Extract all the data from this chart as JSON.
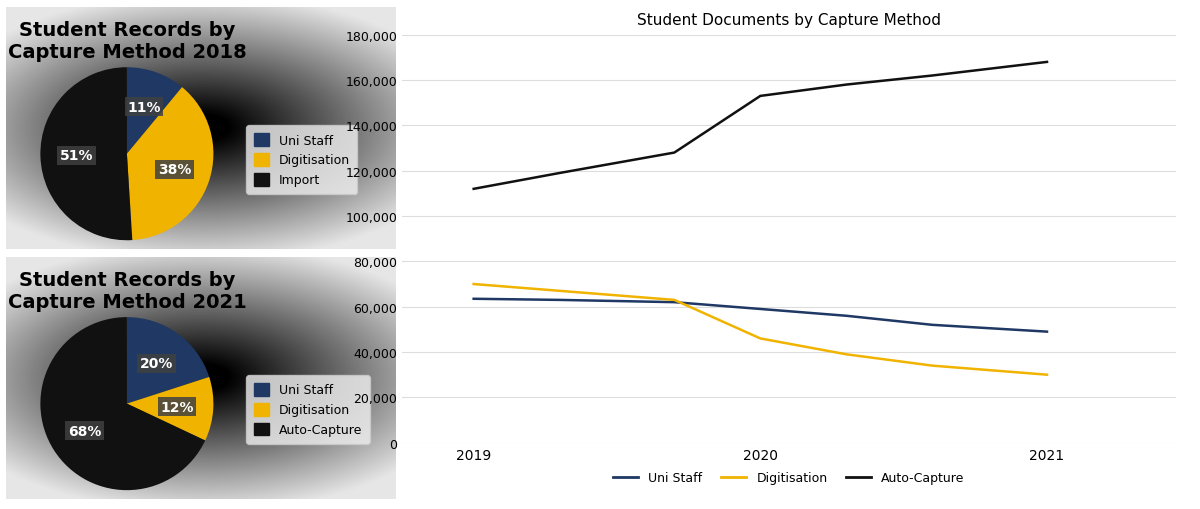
{
  "pie2018": {
    "values": [
      11,
      38,
      51
    ],
    "colors": [
      "#1F3864",
      "#F0B400",
      "#111111"
    ],
    "title": "Student Records by\nCapture Method 2018",
    "pct_labels": [
      "11%",
      "38%",
      "51%"
    ],
    "startangle": 90,
    "legend_labels": [
      "Uni Staff",
      "Digitisation",
      "Import"
    ]
  },
  "pie2021": {
    "values": [
      20,
      12,
      68
    ],
    "colors": [
      "#1F3864",
      "#F0B400",
      "#111111"
    ],
    "title": "Student Records by\nCapture Method 2021",
    "pct_labels": [
      "20%",
      "12%",
      "68%"
    ],
    "startangle": 90,
    "legend_labels": [
      "Uni Staff",
      "Digitisation",
      "Auto-Capture"
    ]
  },
  "line_chart": {
    "title": "Student Documents by Capture Method",
    "years": [
      2019,
      2019.3,
      2019.7,
      2020,
      2020.3,
      2020.6,
      2021
    ],
    "uni_staff": [
      63500,
      63000,
      62000,
      59000,
      56000,
      52000,
      49000
    ],
    "digitisation": [
      70000,
      67000,
      63000,
      46000,
      39000,
      34000,
      30000
    ],
    "auto_capture": [
      112000,
      119000,
      128000,
      153000,
      158000,
      162000,
      168000
    ],
    "ylim": [
      0,
      180000
    ],
    "yticks": [
      0,
      20000,
      40000,
      60000,
      80000,
      100000,
      120000,
      140000,
      160000,
      180000
    ],
    "xticks": [
      2019,
      2020,
      2021
    ],
    "colors": {
      "uni_staff": "#1F3864",
      "digitisation": "#F0B400",
      "auto_capture": "#111111"
    },
    "legend_labels": [
      "Uni Staff",
      "Digitisation",
      "Auto-Capture"
    ]
  },
  "bg_grad_light": "#E8E8E8",
  "bg_grad_dark": "#A0A0A0",
  "pie_label_box_color": "#3A3A3A",
  "title_fontsize": 14,
  "legend_fontsize": 9
}
